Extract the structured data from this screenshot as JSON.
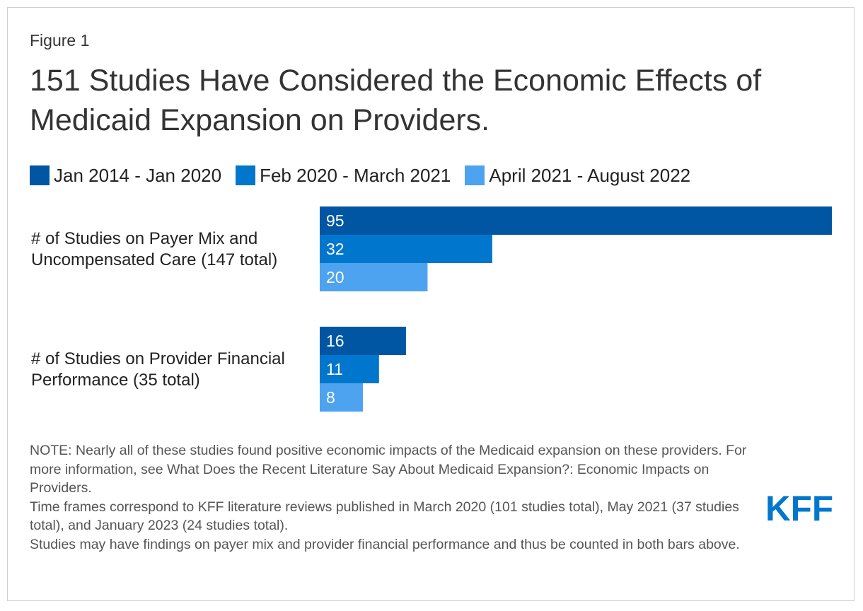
{
  "figure_label": "Figure 1",
  "title": "151 Studies Have Considered the Economic Effects of Medicaid Expansion on Providers.",
  "colors": {
    "series1": "#0056a3",
    "series2": "#0077cc",
    "series3": "#4da3f0"
  },
  "chart_data": {
    "type": "bar",
    "orientation": "horizontal",
    "categories": [
      "# of Studies on Payer Mix and Uncompensated Care (147 total)",
      "# of Studies on Provider Financial Performance (35 total)"
    ],
    "category_lines": [
      [
        "# of Studies on Payer Mix and",
        "Uncompensated Care (147 total)"
      ],
      [
        "# of Studies on Provider Financial",
        "Performance (35 total)"
      ]
    ],
    "series": [
      {
        "name": "Jan 2014 - Jan 2020",
        "values": [
          95,
          16
        ],
        "color": "#0056a3"
      },
      {
        "name": "Feb 2020 - March 2021",
        "values": [
          32,
          11
        ],
        "color": "#0077cc"
      },
      {
        "name": "April 2021 - August 2022",
        "values": [
          20,
          8
        ],
        "color": "#4da3f0"
      }
    ],
    "xlim": [
      0,
      95
    ],
    "legend_position": "top",
    "grid": false,
    "data_labels": true
  },
  "notes": [
    "NOTE: Nearly all of these studies found positive economic impacts of the Medicaid expansion on these providers. For more information, see What Does the Recent Literature Say About Medicaid Expansion?: Economic Impacts on Providers.",
    "Time frames correspond to KFF literature reviews published in March 2020 (101 studies total), May 2021 (37 studies total), and January 2023 (24 studies total).",
    "Studies may have findings on payer mix and provider financial performance and thus be counted in both bars above."
  ],
  "logo": {
    "text": "KFF",
    "color": "#0077cc"
  }
}
